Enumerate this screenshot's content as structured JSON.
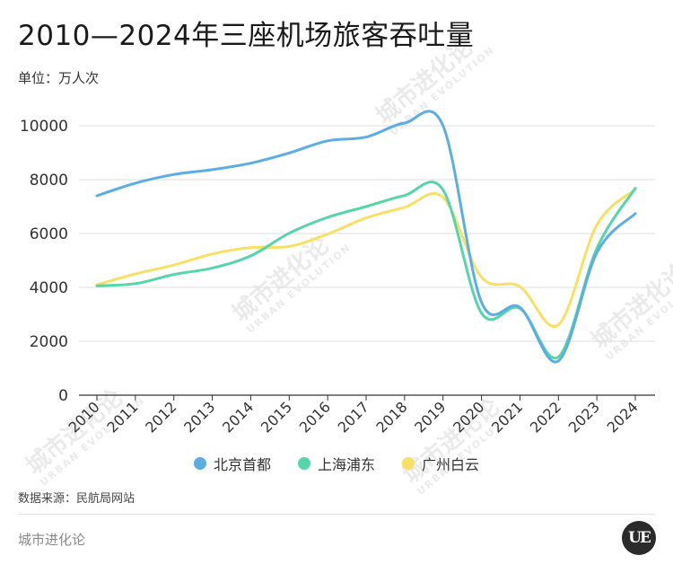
{
  "header": {
    "title": "2010—2024年三座机场旅客吞吐量",
    "unit": "单位：万人次"
  },
  "footer": {
    "source": "数据来源：民航局网站",
    "brand": "城市进化论",
    "logo": "UE"
  },
  "watermark": {
    "text": "城市进化论",
    "sub": "URBAN EVOLUTION"
  },
  "colors": {
    "beijing": "#5aaee3",
    "shanghai": "#55d6a8",
    "guangzhou": "#f7e063",
    "grid": "#dddddd",
    "axis": "#333333"
  },
  "chart_data": {
    "type": "line",
    "title": "2010—2024年三座机场旅客吞吐量",
    "ylabel": "单位：万人次",
    "ylim": [
      0,
      11000
    ],
    "yticks": [
      0,
      2000,
      4000,
      6000,
      8000,
      10000
    ],
    "categories": [
      "2010",
      "2011",
      "2012",
      "2013",
      "2014",
      "2015",
      "2016",
      "2017",
      "2018",
      "2019",
      "2020",
      "2021",
      "2022",
      "2023",
      "2024"
    ],
    "legend_position": "bottom",
    "grid": true,
    "series": [
      {
        "name": "北京首都",
        "color": "#5aaee3",
        "values": [
          7400,
          7870,
          8190,
          8370,
          8610,
          8990,
          9440,
          9580,
          10100,
          10000,
          3450,
          3260,
          1270,
          5290,
          6740
        ]
      },
      {
        "name": "上海浦东",
        "color": "#55d6a8",
        "values": [
          4060,
          4140,
          4480,
          4720,
          5170,
          6010,
          6600,
          7000,
          7410,
          7620,
          3050,
          3220,
          1420,
          5450,
          7680
        ]
      },
      {
        "name": "广州白云",
        "color": "#f7e063",
        "values": [
          4100,
          4500,
          4830,
          5240,
          5480,
          5520,
          5980,
          6580,
          6970,
          7340,
          4380,
          4030,
          2610,
          6320,
          7640
        ]
      }
    ]
  }
}
